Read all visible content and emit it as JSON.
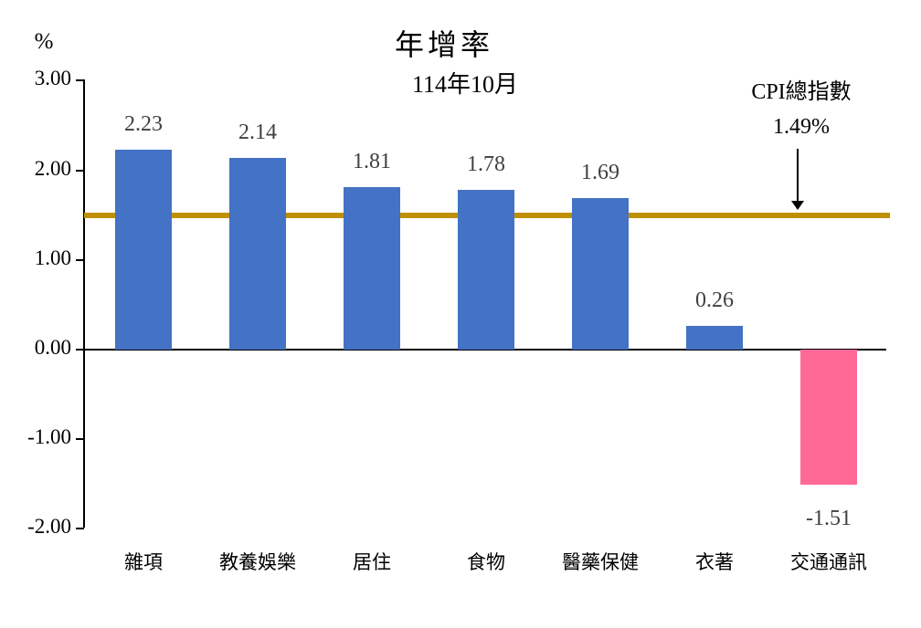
{
  "chart_data": {
    "type": "bar",
    "title": "年增率",
    "subtitle": "114年10月",
    "ylabel": "%",
    "ylim": [
      -2.0,
      3.0
    ],
    "grid": false,
    "legend": "none",
    "categories": [
      "雜項",
      "教養娛樂",
      "居住",
      "食物",
      "醫藥保健",
      "衣著",
      "交通通訊"
    ],
    "values": [
      2.23,
      2.14,
      1.81,
      1.78,
      1.69,
      0.26,
      -1.51
    ],
    "value_labels": [
      "2.23",
      "2.14",
      "1.81",
      "1.78",
      "1.69",
      "0.26",
      "-1.51"
    ],
    "ytick_values": [
      3,
      2,
      1,
      0,
      -1,
      -2
    ],
    "ytick_labels": [
      "3.00",
      "2.00",
      "1.00",
      "0.00",
      "-1.00",
      "-2.00"
    ],
    "bar_color_positive": "#4472C4",
    "bar_color_negative": "#FF6996",
    "reference_line": {
      "value": 1.49,
      "label": "CPI總指數",
      "value_label": "1.49%",
      "color": "#BF9000"
    }
  },
  "colors": {
    "background": "#FFFFFF",
    "axis": "#000000",
    "value_label_text": "#404040",
    "bar_positive": "#4472C4",
    "bar_negative": "#FF6996",
    "reference_line": "#BF9000"
  }
}
